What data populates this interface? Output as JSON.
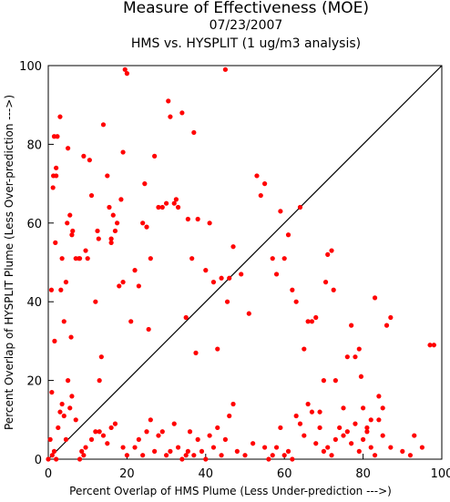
{
  "chart_data": {
    "type": "scatter",
    "title": "Measure of Effectiveness (MOE)",
    "subtitle_date": "07/23/2007",
    "subtitle_analysis": "HMS vs. HYSPLIT  (1 ug/m3 analysis)",
    "xlabel": "Percent Overlap of HMS Plume (Less Under-prediction --->)",
    "ylabel": "Percent Overlap of HYSPLIT Plume (Less Over-prediction --->)",
    "xlim": [
      0,
      100
    ],
    "ylim": [
      0,
      100
    ],
    "xticks": [
      "0",
      "20",
      "40",
      "60",
      "80",
      "100"
    ],
    "yticks": [
      "0",
      "20",
      "40",
      "60",
      "80",
      "100"
    ],
    "grid": false,
    "diagonal_line": true,
    "marker_color": "#ff0000",
    "points": [
      [
        0.8,
        43
      ],
      [
        0.9,
        17
      ],
      [
        1.2,
        69
      ],
      [
        1.3,
        72
      ],
      [
        1.5,
        82
      ],
      [
        1.6,
        30
      ],
      [
        1.8,
        55
      ],
      [
        2,
        72
      ],
      [
        2,
        74
      ],
      [
        2.3,
        82
      ],
      [
        3,
        87
      ],
      [
        3.2,
        43
      ],
      [
        3.5,
        51
      ],
      [
        4,
        35
      ],
      [
        4.5,
        45
      ],
      [
        4.8,
        60
      ],
      [
        5,
        79
      ],
      [
        5.5,
        62
      ],
      [
        5.8,
        31
      ],
      [
        6,
        57
      ],
      [
        6.2,
        58
      ],
      [
        7,
        51
      ],
      [
        7.8,
        51
      ],
      [
        8,
        51
      ],
      [
        9,
        77
      ],
      [
        9.5,
        53
      ],
      [
        10,
        51
      ],
      [
        10.5,
        76
      ],
      [
        11,
        67
      ],
      [
        12,
        40
      ],
      [
        12.5,
        58
      ],
      [
        12.8,
        56
      ],
      [
        13,
        20
      ],
      [
        13.5,
        26
      ],
      [
        14,
        85
      ],
      [
        15,
        72
      ],
      [
        15.5,
        64
      ],
      [
        16,
        56
      ],
      [
        16,
        55
      ],
      [
        16.5,
        62
      ],
      [
        17,
        58
      ],
      [
        17.5,
        60
      ],
      [
        18,
        44
      ],
      [
        18.5,
        66
      ],
      [
        19,
        45
      ],
      [
        19,
        78
      ],
      [
        19.5,
        99
      ],
      [
        20,
        98
      ],
      [
        21,
        35
      ],
      [
        22,
        48
      ],
      [
        23,
        44
      ],
      [
        24,
        60
      ],
      [
        24.5,
        70
      ],
      [
        25,
        59
      ],
      [
        25.5,
        33
      ],
      [
        26,
        51
      ],
      [
        27,
        77
      ],
      [
        28,
        64
      ],
      [
        29,
        64
      ],
      [
        30,
        65
      ],
      [
        30.5,
        91
      ],
      [
        31,
        87
      ],
      [
        32,
        65
      ],
      [
        32.5,
        66
      ],
      [
        33,
        64
      ],
      [
        34,
        88
      ],
      [
        35,
        36
      ],
      [
        35.5,
        61
      ],
      [
        36.5,
        51
      ],
      [
        37,
        83
      ],
      [
        37.5,
        27
      ],
      [
        38,
        61
      ],
      [
        40,
        48
      ],
      [
        41,
        60
      ],
      [
        42,
        45
      ],
      [
        43,
        28
      ],
      [
        44,
        46
      ],
      [
        45,
        99
      ],
      [
        45.5,
        40
      ],
      [
        46,
        46
      ],
      [
        47,
        54
      ],
      [
        49,
        47
      ],
      [
        51,
        37
      ],
      [
        53,
        72
      ],
      [
        54,
        67
      ],
      [
        55,
        70
      ],
      [
        57,
        51
      ],
      [
        58,
        47
      ],
      [
        59,
        63
      ],
      [
        60,
        51
      ],
      [
        61,
        57
      ],
      [
        62,
        43
      ],
      [
        63,
        40
      ],
      [
        64,
        64
      ],
      [
        65,
        28
      ],
      [
        66,
        35
      ],
      [
        67,
        35
      ],
      [
        68,
        36
      ],
      [
        69,
        12
      ],
      [
        70,
        20
      ],
      [
        70.5,
        45
      ],
      [
        71,
        52
      ],
      [
        72,
        53
      ],
      [
        72.5,
        43
      ],
      [
        73,
        20
      ],
      [
        75,
        13
      ],
      [
        76,
        26
      ],
      [
        77,
        34
      ],
      [
        78,
        26
      ],
      [
        79,
        28
      ],
      [
        79.5,
        21
      ],
      [
        80,
        13
      ],
      [
        81,
        8
      ],
      [
        82,
        10
      ],
      [
        83,
        41
      ],
      [
        84,
        16
      ],
      [
        85,
        13
      ],
      [
        86,
        34
      ],
      [
        87,
        36
      ],
      [
        0,
        0
      ],
      [
        0.5,
        5
      ],
      [
        1,
        1
      ],
      [
        1.5,
        2
      ],
      [
        2,
        0
      ],
      [
        2.5,
        8
      ],
      [
        3,
        12
      ],
      [
        3.5,
        14
      ],
      [
        4,
        11
      ],
      [
        4.5,
        5
      ],
      [
        5,
        20
      ],
      [
        5.5,
        13
      ],
      [
        6,
        16
      ],
      [
        7,
        10
      ],
      [
        8,
        0
      ],
      [
        8.5,
        2
      ],
      [
        9,
        1
      ],
      [
        9.5,
        3
      ],
      [
        11,
        5
      ],
      [
        12,
        7
      ],
      [
        13,
        7
      ],
      [
        14,
        6
      ],
      [
        15,
        4
      ],
      [
        16,
        8
      ],
      [
        17,
        9
      ],
      [
        19,
        3
      ],
      [
        20,
        1
      ],
      [
        22,
        3
      ],
      [
        23,
        5
      ],
      [
        24,
        1
      ],
      [
        25,
        7
      ],
      [
        26,
        10
      ],
      [
        27,
        2
      ],
      [
        28,
        6
      ],
      [
        29,
        7
      ],
      [
        30,
        1
      ],
      [
        31,
        2
      ],
      [
        32,
        9
      ],
      [
        33,
        3
      ],
      [
        34,
        0
      ],
      [
        35,
        1
      ],
      [
        35.5,
        2
      ],
      [
        36,
        7
      ],
      [
        37,
        1
      ],
      [
        38,
        5
      ],
      [
        39,
        2
      ],
      [
        40,
        0
      ],
      [
        41,
        6
      ],
      [
        42,
        3
      ],
      [
        43,
        8
      ],
      [
        44,
        1
      ],
      [
        45,
        5
      ],
      [
        46,
        11
      ],
      [
        47,
        14
      ],
      [
        48,
        2
      ],
      [
        50,
        1
      ],
      [
        52,
        4
      ],
      [
        55,
        3
      ],
      [
        56,
        0
      ],
      [
        57,
        1
      ],
      [
        58,
        3
      ],
      [
        59,
        8
      ],
      [
        60,
        1
      ],
      [
        61,
        2
      ],
      [
        62,
        0
      ],
      [
        63,
        11
      ],
      [
        64,
        9
      ],
      [
        65,
        6
      ],
      [
        66,
        14
      ],
      [
        67,
        12
      ],
      [
        68,
        4
      ],
      [
        69,
        8
      ],
      [
        70,
        2
      ],
      [
        71,
        3
      ],
      [
        72,
        1
      ],
      [
        73,
        5
      ],
      [
        74,
        8
      ],
      [
        75,
        6
      ],
      [
        76,
        7
      ],
      [
        77,
        4
      ],
      [
        78,
        9
      ],
      [
        79,
        2
      ],
      [
        80,
        5
      ],
      [
        81,
        7
      ],
      [
        82,
        3
      ],
      [
        83,
        1
      ],
      [
        84,
        10
      ],
      [
        85,
        6
      ],
      [
        87,
        3
      ],
      [
        90,
        2
      ],
      [
        92,
        1
      ],
      [
        93,
        6
      ],
      [
        95,
        3
      ],
      [
        97,
        29
      ],
      [
        98,
        29
      ]
    ]
  }
}
